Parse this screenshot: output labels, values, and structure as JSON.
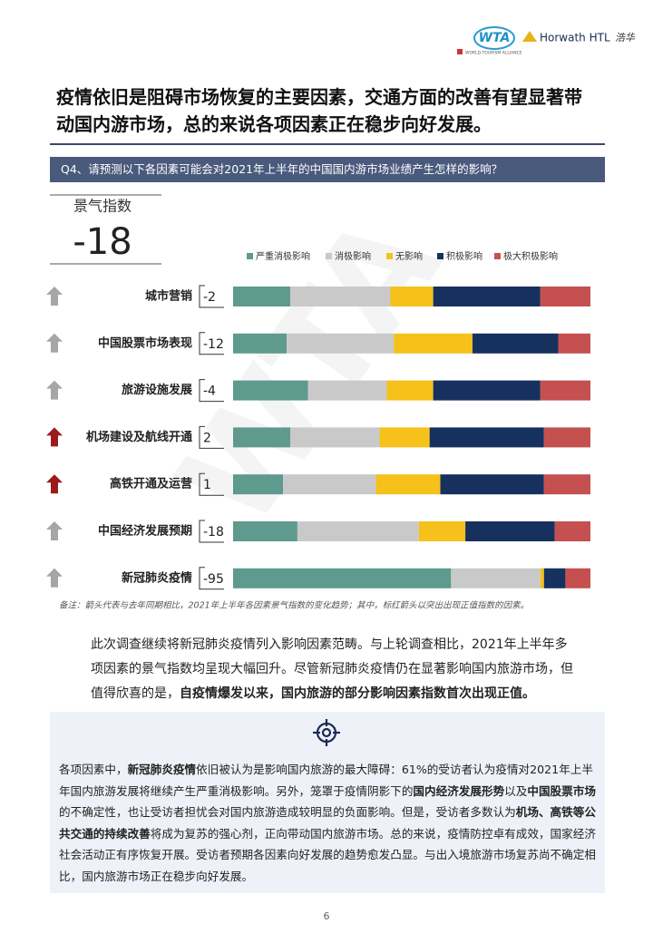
{
  "header": {
    "wta": "WTA",
    "wta_sub": "WORLD TOURISM ALLIANCE",
    "horwath": "Horwath HTL",
    "horwath_cn": "浩华"
  },
  "title": [
    "疫情依旧是阻碍市场恢复的主要因素，交通方面的改善有望显著带",
    "动国内游市场，总的来说各项因素正在稳步向好发展。"
  ],
  "question": "Q4、请预测以下各因素可能会对2021年上半年的中国国内游市场业绩产生怎样的影响？",
  "watermark": "WTA",
  "chart_data": {
    "type": "bar",
    "orientation": "horizontal",
    "stacked": true,
    "index_title": "景气指数",
    "index_value": "-18",
    "categories": [
      "城市营销",
      "中国股票市场表现",
      "旅游设施发展",
      "机场建设及航线开通",
      "高铁开通及运营",
      "中国经济发展预期",
      "新冠肺炎疫情"
    ],
    "indices": [
      "-2",
      "-12",
      "-4",
      "2",
      "1",
      "-18",
      "-95"
    ],
    "arrow_colors": [
      "#a6a6a6",
      "#a6a6a6",
      "#a6a6a6",
      "#9b1b1b",
      "#9b1b1b",
      "#a6a6a6",
      "#a6a6a6"
    ],
    "series": [
      {
        "name": "严重消极影响",
        "color": "#5e9a8e",
        "values": [
          16,
          15,
          21,
          16,
          14,
          18,
          61
        ]
      },
      {
        "name": "消极影响",
        "color": "#c9c9c9",
        "values": [
          28,
          30,
          22,
          25,
          26,
          34,
          25
        ]
      },
      {
        "name": "无影响",
        "color": "#f5c11a",
        "values": [
          12,
          22,
          13,
          14,
          18,
          13,
          1
        ]
      },
      {
        "name": "积极影响",
        "color": "#16315e",
        "values": [
          30,
          24,
          30,
          32,
          29,
          25,
          6
        ]
      },
      {
        "name": "极大积极影响",
        "color": "#c55050",
        "values": [
          14,
          9,
          14,
          13,
          13,
          10,
          7
        ]
      }
    ],
    "xlim": [
      0,
      100
    ],
    "note": "备注：箭头代表与去年同期相比，2021年上半年各因素景气指数的变化趋势；其中，标红箭头以突出出现正值指数的因素。"
  },
  "paragraph": [
    {
      "text": "此次调查继续将新冠肺炎疫情列入影响因素范畴。与上轮调查相比，2021年上半年多项因素的景气指数均呈现大幅回升。尽管新冠肺炎疫情仍在显著影响国内旅游市场，但值得欣喜的是，",
      "bold": false
    },
    {
      "text": "自疫情爆发以来，国内旅游的部分影响因素指数首次出现正值。",
      "bold": true
    }
  ],
  "box": [
    {
      "text": "各项因素中，",
      "bold": false
    },
    {
      "text": "新冠肺炎疫情",
      "bold": true
    },
    {
      "text": "依旧被认为是影响国内旅游的最大障碍：61%的受访者认为疫情对2021年上半年国内旅游发展将继续产生严重消极影响。另外，笼罩于疫情阴影下的",
      "bold": false
    },
    {
      "text": "国内经济发展形势",
      "bold": true
    },
    {
      "text": "以及",
      "bold": false
    },
    {
      "text": "中国股票市场",
      "bold": true
    },
    {
      "text": "的不确定性，也让受访者担忧会对国内旅游造成较明显的负面影响。但是，受访者多数认为",
      "bold": false
    },
    {
      "text": "机场、高铁等公共交通的持续改善",
      "bold": true
    },
    {
      "text": "将成为复苏的强心剂，正向带动国内旅游市场。总的来说，疫情防控卓有成效，国家经济社会活动正有序恢复开展。受访者预期各因素向好发展的趋势愈发凸显。与出入境旅游市场复苏尚不确定相比，国内旅游市场正在稳步向好发展。",
      "bold": false
    }
  ],
  "page_number": "6"
}
